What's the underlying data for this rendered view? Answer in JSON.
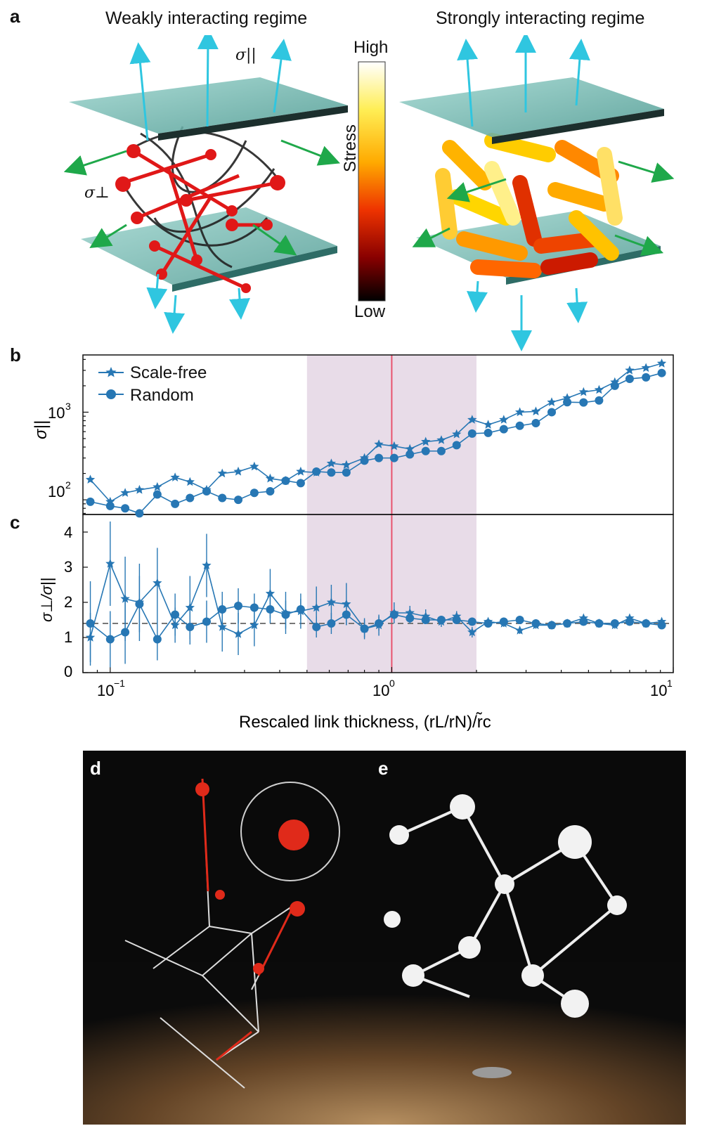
{
  "panel_a": {
    "letter": "a",
    "left_title": "Weakly interacting regime",
    "right_title": "Strongly interacting regime",
    "sigma_par": "σ||",
    "sigma_perp": "σ⊥",
    "colorbar": {
      "high": "High",
      "low": "Low",
      "label": "Stress",
      "colors": [
        "#ffffff",
        "#ffee55",
        "#ffaa00",
        "#ee3300",
        "#990000",
        "#000000"
      ]
    }
  },
  "panel_b": {
    "letter": "b",
    "ylabel": "σ||",
    "ytick_1e2": "10",
    "ytick_1e3": "10",
    "exp_2": "2",
    "exp_3": "3"
  },
  "panel_c": {
    "letter": "c",
    "ylabel": "σ⊥/σ||",
    "yticks": [
      "0",
      "1",
      "2",
      "3",
      "4"
    ],
    "xtick_labels": [
      {
        "base": "10",
        "exp": "−1"
      },
      {
        "base": "10",
        "exp": "0"
      },
      {
        "base": "10",
        "exp": "1"
      }
    ],
    "xlabel": "Rescaled link thickness, (rL/rN)/r̃c"
  },
  "panel_d": {
    "letter": "d"
  },
  "panel_e": {
    "letter": "e"
  },
  "colors": {
    "series": "#2777b4",
    "shade": "#e8dce8",
    "line": "#e8536e",
    "dashed": "#777777"
  },
  "chart_data": [
    {
      "type": "line",
      "title": "",
      "xlabel": "Rescaled link thickness, (rL/rN)/r̃c",
      "ylabel": "σ||",
      "xscale": "log",
      "yscale": "log",
      "xlim": [
        0.08,
        10
      ],
      "ylim": [
        68,
        4500
      ],
      "grid": false,
      "legend": "top-left",
      "shaded_x_range": [
        0.5,
        2.0
      ],
      "vertical_line_x": 1.0,
      "series": [
        {
          "name": "Scale-free",
          "marker": "star",
          "x": [
            0.085,
            0.1,
            0.113,
            0.127,
            0.147,
            0.17,
            0.192,
            0.22,
            0.25,
            0.285,
            0.325,
            0.37,
            0.42,
            0.475,
            0.54,
            0.61,
            0.69,
            0.8,
            0.9,
            1.02,
            1.16,
            1.32,
            1.5,
            1.7,
            1.93,
            2.2,
            2.5,
            2.85,
            3.25,
            3.7,
            4.2,
            4.8,
            5.45,
            6.2,
            7.0,
            8.0,
            9.1
          ],
          "y": [
            170,
            95,
            120,
            130,
            140,
            180,
            160,
            130,
            200,
            210,
            240,
            175,
            165,
            210,
            205,
            260,
            250,
            300,
            430,
            410,
            380,
            460,
            480,
            560,
            820,
            720,
            820,
            1000,
            1020,
            1300,
            1450,
            1700,
            1800,
            2200,
            3000,
            3200,
            3600
          ]
        },
        {
          "name": "Random",
          "marker": "circle",
          "x": [
            0.085,
            0.1,
            0.113,
            0.127,
            0.147,
            0.17,
            0.192,
            0.22,
            0.25,
            0.285,
            0.325,
            0.37,
            0.42,
            0.475,
            0.54,
            0.61,
            0.69,
            0.8,
            0.9,
            1.02,
            1.16,
            1.32,
            1.5,
            1.7,
            1.93,
            2.2,
            2.5,
            2.85,
            3.25,
            3.7,
            4.2,
            4.8,
            5.45,
            6.2,
            7.0,
            8.0,
            9.1
          ],
          "y": [
            95,
            85,
            80,
            70,
            115,
            90,
            105,
            125,
            105,
            100,
            120,
            125,
            165,
            155,
            210,
            205,
            205,
            280,
            300,
            300,
            330,
            360,
            360,
            420,
            570,
            580,
            640,
            700,
            750,
            1000,
            1300,
            1290,
            1360,
            2000,
            2400,
            2500,
            2800
          ]
        }
      ]
    },
    {
      "type": "line",
      "title": "",
      "xlabel": "Rescaled link thickness, (rL/rN)/r̃c",
      "ylabel": "σ⊥/σ||",
      "xscale": "log",
      "xlim": [
        0.08,
        10
      ],
      "ylim": [
        0,
        4.5
      ],
      "grid": false,
      "shaded_x_range": [
        0.5,
        2.0
      ],
      "vertical_line_x": 1.0,
      "reference_line_y": 1.4,
      "series": [
        {
          "name": "Scale-free",
          "marker": "star",
          "x": [
            0.085,
            0.1,
            0.113,
            0.127,
            0.147,
            0.17,
            0.192,
            0.22,
            0.25,
            0.285,
            0.325,
            0.37,
            0.42,
            0.475,
            0.54,
            0.61,
            0.69,
            0.8,
            0.9,
            1.02,
            1.16,
            1.32,
            1.5,
            1.7,
            1.93,
            2.2,
            2.5,
            2.85,
            3.25,
            3.7,
            4.2,
            4.8,
            5.45,
            6.2,
            7.0,
            8.0,
            9.1
          ],
          "y": [
            1.0,
            3.1,
            2.1,
            2.0,
            2.55,
            1.35,
            1.85,
            3.05,
            1.3,
            1.1,
            1.35,
            2.25,
            1.7,
            1.75,
            1.85,
            2.0,
            1.95,
            1.25,
            1.35,
            1.7,
            1.7,
            1.6,
            1.45,
            1.6,
            1.15,
            1.45,
            1.4,
            1.2,
            1.35,
            1.35,
            1.4,
            1.55,
            1.4,
            1.35,
            1.55,
            1.4,
            1.45
          ],
          "err": [
            0.7,
            1.2,
            1.2,
            1.1,
            1.0,
            0.5,
            0.9,
            0.9,
            0.7,
            0.6,
            0.6,
            0.7,
            0.6,
            0.5,
            0.6,
            0.5,
            0.6,
            0.3,
            0.3,
            0.3,
            0.2,
            0.2,
            0.15,
            0.15,
            0.15,
            0.1,
            0.1,
            0.1,
            0.1,
            0.1,
            0.1,
            0.1,
            0.1,
            0.1,
            0.1,
            0.1,
            0.1
          ]
        },
        {
          "name": "Random",
          "marker": "circle",
          "x": [
            0.085,
            0.1,
            0.113,
            0.127,
            0.147,
            0.17,
            0.192,
            0.22,
            0.25,
            0.285,
            0.325,
            0.37,
            0.42,
            0.475,
            0.54,
            0.61,
            0.69,
            0.8,
            0.9,
            1.02,
            1.16,
            1.32,
            1.5,
            1.7,
            1.93,
            2.2,
            2.5,
            2.85,
            3.25,
            3.7,
            4.2,
            4.8,
            5.45,
            6.2,
            7.0,
            8.0,
            9.1
          ],
          "y": [
            1.4,
            0.95,
            1.15,
            1.95,
            0.95,
            1.65,
            1.3,
            1.45,
            1.8,
            1.9,
            1.85,
            1.8,
            1.65,
            1.8,
            1.3,
            1.4,
            1.65,
            1.25,
            1.4,
            1.65,
            1.55,
            1.5,
            1.5,
            1.5,
            1.45,
            1.4,
            1.45,
            1.5,
            1.4,
            1.35,
            1.4,
            1.45,
            1.4,
            1.4,
            1.45,
            1.4,
            1.35
          ],
          "err": [
            1.2,
            0.8,
            0.9,
            0.8,
            0.6,
            0.6,
            0.5,
            0.6,
            0.5,
            0.5,
            0.4,
            0.4,
            0.4,
            0.3,
            0.3,
            0.3,
            0.3,
            0.25,
            0.2,
            0.15,
            0.15,
            0.1,
            0.1,
            0.1,
            0.1,
            0.1,
            0.1,
            0.1,
            0.1,
            0.1,
            0.1,
            0.1,
            0.1,
            0.1,
            0.1,
            0.1,
            0.1
          ]
        }
      ]
    }
  ]
}
